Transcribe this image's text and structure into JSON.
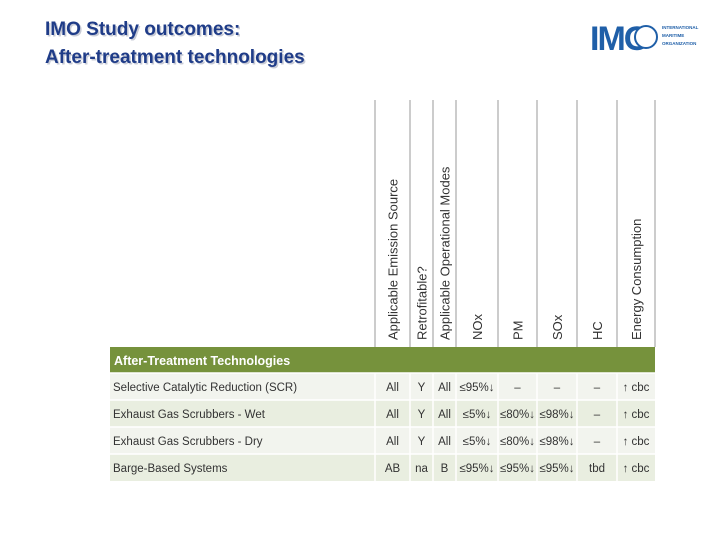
{
  "header": {
    "title": [
      "IMO Study outcomes:",
      "After-treatment technologies"
    ]
  },
  "logo": {
    "acronym": "IMO",
    "lines": [
      "INTERNATIONAL",
      "MARITIME",
      "ORGANIZATION"
    ]
  },
  "table": {
    "columns": [
      "Applicable Emission Source",
      "Retrofitable?",
      "Applicable Operational Modes",
      "NOx",
      "PM",
      "SOx",
      "HC",
      "Energy Consumption"
    ],
    "section": "After-Treatment Technologies",
    "rows": [
      [
        "Selective Catalytic Reduction (SCR)",
        "All",
        "Y",
        "All",
        "≤95%↓",
        "–",
        "–",
        "–",
        "↑ cbc"
      ],
      [
        "Exhaust Gas Scrubbers - Wet",
        "All",
        "Y",
        "All",
        "≤5%↓",
        "≤80%↓",
        "≤98%↓",
        "–",
        "↑ cbc"
      ],
      [
        "Exhaust Gas Scrubbers - Dry",
        "All",
        "Y",
        "All",
        "≤5%↓",
        "≤80%↓",
        "≤98%↓",
        "–",
        "↑ cbc"
      ],
      [
        "Barge-Based Systems",
        "AB",
        "na",
        "B",
        "≤95%↓",
        "≤95%↓",
        "≤95%↓",
        "tbd",
        "↑ cbc"
      ]
    ]
  }
}
